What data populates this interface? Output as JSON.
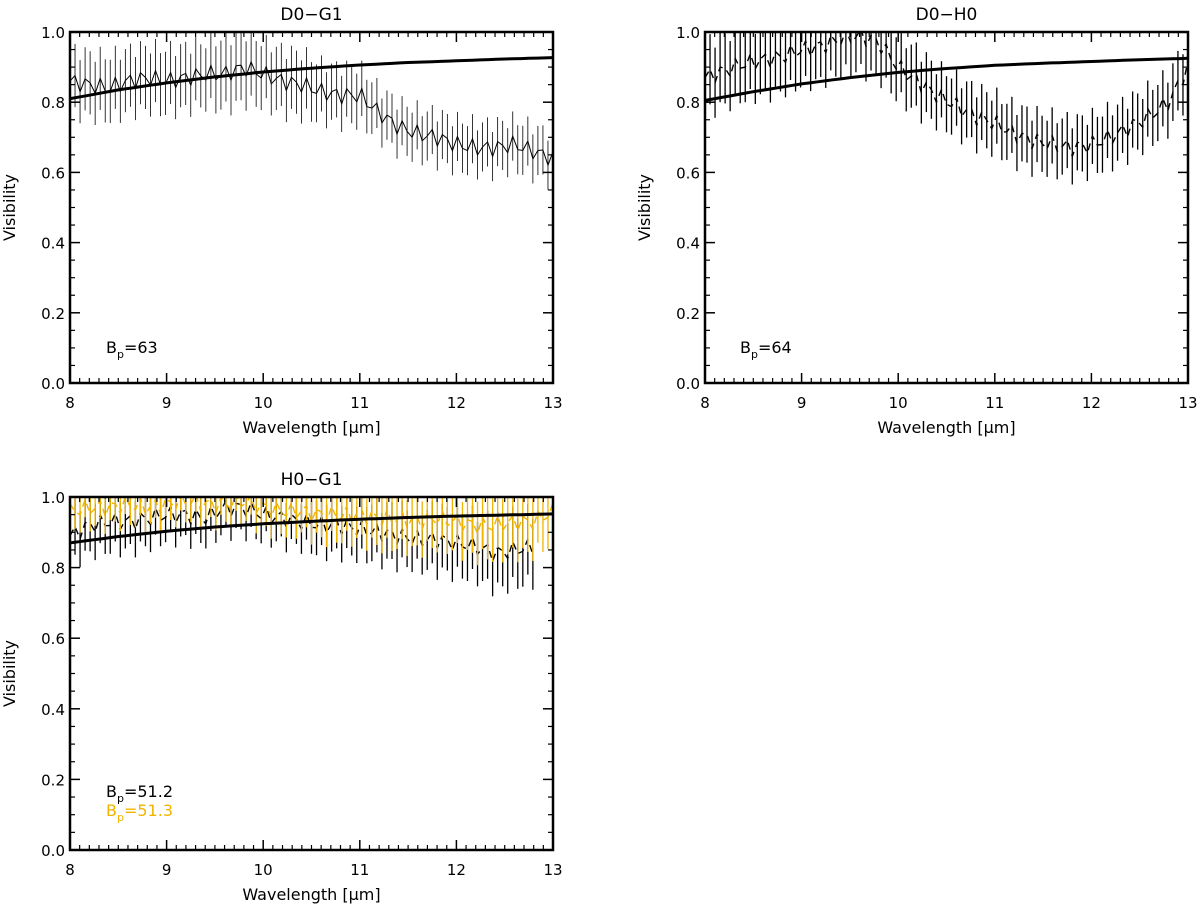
{
  "chart_data": [
    {
      "type": "line",
      "title": "D0−G1",
      "xlabel": "Wavelength [μm]",
      "ylabel": "Visibility",
      "xlim": [
        8,
        13
      ],
      "ylim": [
        0,
        1
      ],
      "x_ticks": [
        "8",
        "9",
        "10",
        "11",
        "12",
        "13"
      ],
      "y_ticks": [
        "0.0",
        "0.2",
        "0.4",
        "0.6",
        "0.8",
        "1.0"
      ],
      "grid": false,
      "annotations": [
        {
          "base": "B",
          "sub": "p",
          "text": "=63",
          "color": "#000000"
        }
      ],
      "series": [
        {
          "style": "solid-thin",
          "color": "#000000",
          "x": [
            8.0,
            8.2,
            8.4,
            8.6,
            8.8,
            9.0,
            9.2,
            9.4,
            9.6,
            9.8,
            10.0,
            10.2,
            10.4,
            10.6,
            10.8,
            11.0,
            11.2,
            11.4,
            11.6,
            11.8,
            12.0,
            12.2,
            12.4,
            12.6,
            12.8,
            13.0
          ],
          "y": [
            0.86,
            0.85,
            0.84,
            0.86,
            0.87,
            0.86,
            0.87,
            0.88,
            0.88,
            0.9,
            0.88,
            0.86,
            0.85,
            0.83,
            0.82,
            0.82,
            0.77,
            0.73,
            0.71,
            0.7,
            0.68,
            0.67,
            0.67,
            0.68,
            0.66,
            0.64
          ],
          "error": [
            0.09,
            0.09,
            0.09,
            0.09,
            0.09,
            0.09,
            0.09,
            0.09,
            0.1,
            0.1,
            0.09,
            0.09,
            0.09,
            0.08,
            0.08,
            0.08,
            0.07,
            0.07,
            0.07,
            0.07,
            0.07,
            0.07,
            0.07,
            0.07,
            0.07,
            0.07
          ]
        },
        {
          "style": "solid-thick",
          "color": "#000000",
          "x": [
            8.0,
            8.5,
            9.0,
            9.5,
            10.0,
            10.5,
            11.0,
            11.5,
            12.0,
            12.5,
            13.0
          ],
          "y": [
            0.81,
            0.835,
            0.855,
            0.872,
            0.886,
            0.897,
            0.906,
            0.913,
            0.918,
            0.923,
            0.927
          ]
        }
      ]
    },
    {
      "type": "line",
      "title": "D0−H0",
      "xlabel": "Wavelength [μm]",
      "ylabel": "Visibility",
      "xlim": [
        8,
        13
      ],
      "ylim": [
        0,
        1
      ],
      "x_ticks": [
        "8",
        "9",
        "10",
        "11",
        "12",
        "13"
      ],
      "y_ticks": [
        "0.0",
        "0.2",
        "0.4",
        "0.6",
        "0.8",
        "1.0"
      ],
      "grid": false,
      "annotations": [
        {
          "base": "B",
          "sub": "p",
          "text": "=64",
          "color": "#000000"
        }
      ],
      "series": [
        {
          "style": "dashed",
          "color": "#000000",
          "x": [
            8.0,
            8.2,
            8.4,
            8.6,
            8.8,
            9.0,
            9.2,
            9.4,
            9.6,
            9.8,
            10.0,
            10.2,
            10.4,
            10.6,
            10.8,
            11.0,
            11.2,
            11.4,
            11.6,
            11.8,
            12.0,
            12.2,
            12.4,
            12.6,
            12.8,
            13.0
          ],
          "y": [
            0.87,
            0.89,
            0.91,
            0.92,
            0.93,
            0.95,
            0.96,
            0.98,
            0.99,
            0.97,
            0.9,
            0.86,
            0.82,
            0.79,
            0.76,
            0.74,
            0.71,
            0.69,
            0.68,
            0.67,
            0.68,
            0.7,
            0.73,
            0.76,
            0.8,
            0.9
          ],
          "error": [
            0.1,
            0.1,
            0.1,
            0.1,
            0.1,
            0.1,
            0.1,
            0.1,
            0.1,
            0.1,
            0.09,
            0.09,
            0.08,
            0.08,
            0.08,
            0.08,
            0.08,
            0.08,
            0.08,
            0.08,
            0.08,
            0.08,
            0.08,
            0.08,
            0.08,
            0.09
          ]
        },
        {
          "style": "solid-thick",
          "color": "#000000",
          "x": [
            8.0,
            8.5,
            9.0,
            9.5,
            10.0,
            10.5,
            11.0,
            11.5,
            12.0,
            12.5,
            13.0
          ],
          "y": [
            0.805,
            0.83,
            0.852,
            0.87,
            0.885,
            0.896,
            0.905,
            0.911,
            0.916,
            0.921,
            0.925
          ]
        }
      ]
    },
    {
      "type": "line",
      "title": "H0−G1",
      "xlabel": "Wavelength [μm]",
      "ylabel": "Visibility",
      "xlim": [
        8,
        13
      ],
      "ylim": [
        0,
        1
      ],
      "x_ticks": [
        "8",
        "9",
        "10",
        "11",
        "12",
        "13"
      ],
      "y_ticks": [
        "0.0",
        "0.2",
        "0.4",
        "0.6",
        "0.8",
        "1.0"
      ],
      "grid": false,
      "annotations": [
        {
          "base": "B",
          "sub": "p",
          "text": "=51.2",
          "color": "#000000"
        },
        {
          "base": "B",
          "sub": "p",
          "text": "=51.3",
          "color": "#f0b400"
        }
      ],
      "series": [
        {
          "style": "dashed",
          "color": "#000000",
          "x": [
            8.0,
            8.2,
            8.4,
            8.6,
            8.8,
            9.0,
            9.2,
            9.4,
            9.6,
            9.8,
            10.0,
            10.2,
            10.4,
            10.6,
            10.8,
            11.0,
            11.2,
            11.4,
            11.6,
            11.8,
            12.0,
            12.2,
            12.4,
            12.6,
            12.8
          ],
          "y": [
            0.89,
            0.92,
            0.93,
            0.93,
            0.94,
            0.95,
            0.95,
            0.94,
            0.97,
            0.97,
            0.95,
            0.94,
            0.93,
            0.92,
            0.92,
            0.91,
            0.9,
            0.89,
            0.88,
            0.88,
            0.87,
            0.86,
            0.84,
            0.85,
            0.86
          ],
          "error": [
            0.08,
            0.08,
            0.08,
            0.08,
            0.08,
            0.07,
            0.07,
            0.07,
            0.07,
            0.07,
            0.07,
            0.07,
            0.07,
            0.08,
            0.08,
            0.08,
            0.08,
            0.08,
            0.08,
            0.09,
            0.09,
            0.09,
            0.1,
            0.1,
            0.1
          ]
        },
        {
          "style": "dashed",
          "color": "#f0b400",
          "x": [
            8.0,
            8.2,
            8.4,
            8.6,
            8.8,
            9.0,
            9.2,
            9.4,
            9.6,
            9.8,
            10.0,
            10.2,
            10.4,
            10.6,
            10.8,
            11.0,
            11.2,
            11.4,
            11.6,
            11.8,
            12.0,
            12.2,
            12.4,
            12.6,
            12.8,
            13.0
          ],
          "y": [
            0.96,
            0.97,
            0.97,
            0.98,
            0.97,
            0.98,
            0.99,
            0.98,
            0.98,
            0.99,
            0.97,
            0.96,
            0.96,
            0.95,
            0.95,
            0.95,
            0.94,
            0.94,
            0.93,
            0.94,
            0.93,
            0.92,
            0.92,
            0.93,
            0.93,
            0.96
          ],
          "error": [
            0.05,
            0.05,
            0.05,
            0.05,
            0.05,
            0.05,
            0.05,
            0.05,
            0.05,
            0.05,
            0.06,
            0.06,
            0.06,
            0.07,
            0.07,
            0.07,
            0.08,
            0.08,
            0.08,
            0.08,
            0.08,
            0.09,
            0.09,
            0.09,
            0.09,
            0.09
          ]
        },
        {
          "style": "solid-thick",
          "color": "#000000",
          "x": [
            8.0,
            8.5,
            9.0,
            9.5,
            10.0,
            10.5,
            11.0,
            11.5,
            12.0,
            12.5,
            13.0
          ],
          "y": [
            0.87,
            0.888,
            0.903,
            0.915,
            0.924,
            0.931,
            0.937,
            0.942,
            0.946,
            0.949,
            0.952
          ]
        }
      ]
    }
  ]
}
